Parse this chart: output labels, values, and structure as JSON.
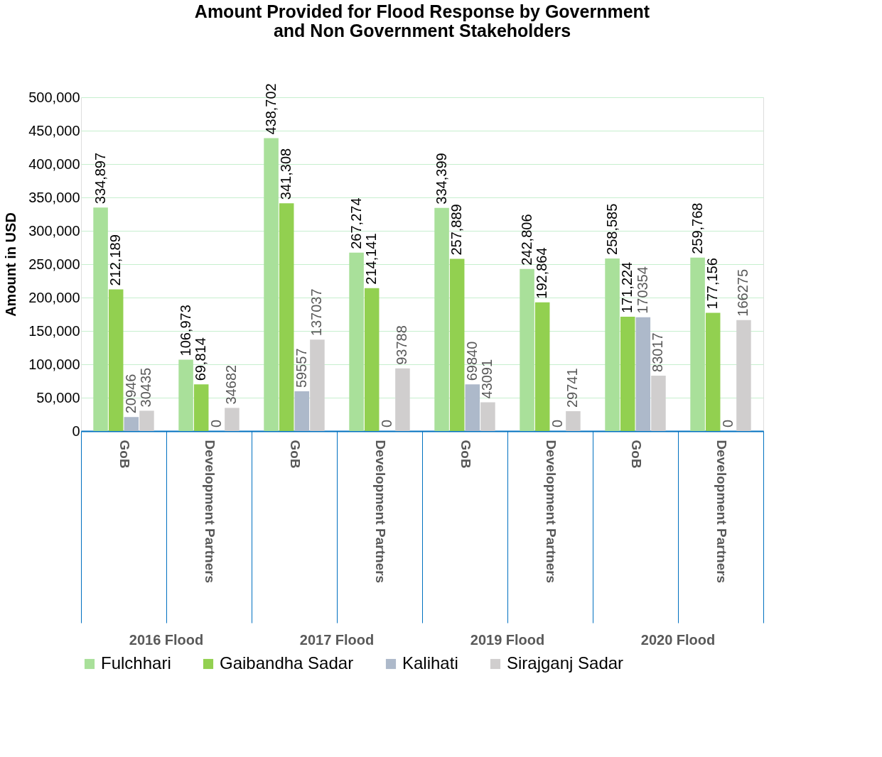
{
  "chart_data": {
    "type": "bar",
    "title": "Amount Provided for Flood Response by Government and Non Government Stakeholders",
    "ylabel": "Amount in USD",
    "categories": [
      "GoB",
      "Development Partners",
      "GoB",
      "Development Partners",
      "GoB",
      "Development Partners",
      "GoB",
      "Development Partners"
    ],
    "annotations": [
      "2016 Flood",
      "2017 Flood",
      "2019  Flood",
      "2020  Flood"
    ],
    "series": [
      {
        "name": "Fulchhari",
        "color": "#a9e09a",
        "values": [
          334897,
          106973,
          438702,
          267274,
          334399,
          242806,
          258585,
          259768
        ],
        "value_labels": [
          "334,897",
          "106,973",
          "438,702",
          "267,274",
          "334,399",
          "242,806",
          "258,585",
          "259,768"
        ]
      },
      {
        "name": "Gaibandha Sadar",
        "color": "#92d050",
        "values": [
          212189,
          69814,
          341308,
          214141,
          257889,
          192864,
          171224,
          177156
        ],
        "value_labels": [
          "212,189",
          "69,814",
          "341,308",
          "214,141",
          "257,889",
          "192,864",
          "171,224",
          "177,156"
        ]
      },
      {
        "name": "Kalihati",
        "color": "#adb9ca",
        "values": [
          20946,
          0,
          59557,
          0,
          69840,
          0,
          170354,
          0
        ],
        "value_labels": [
          "20946",
          "0",
          "59557",
          "0",
          "69840",
          "0",
          "170354",
          "0"
        ]
      },
      {
        "name": "Sirajganj Sadar",
        "color": "#d0cece",
        "values": [
          30435,
          34682,
          137037,
          93788,
          43091,
          29741,
          83017,
          166275
        ],
        "value_labels": [
          "30435",
          "34682",
          "137037",
          "93788",
          "43091",
          "29741",
          "83017",
          "166275"
        ]
      }
    ],
    "ylim": [
      0,
      500000
    ],
    "yticks": [
      0,
      {
        "value": 50000,
        "label": "50,000"
      },
      {
        "value": 100000,
        "label": "100,000"
      },
      {
        "value": 150000,
        "label": "150,000"
      },
      {
        "value": 200000,
        "label": "200,000"
      },
      {
        "value": 250000,
        "label": "250,000"
      },
      {
        "value": 300000,
        "label": "300,000"
      },
      {
        "value": 350000,
        "label": "350,000"
      },
      {
        "value": 400000,
        "label": "400,000"
      },
      {
        "value": 450000,
        "label": "450,000"
      },
      {
        "value": 500000,
        "label": "500,000"
      }
    ],
    "grid": "y",
    "legend": "bottom"
  }
}
